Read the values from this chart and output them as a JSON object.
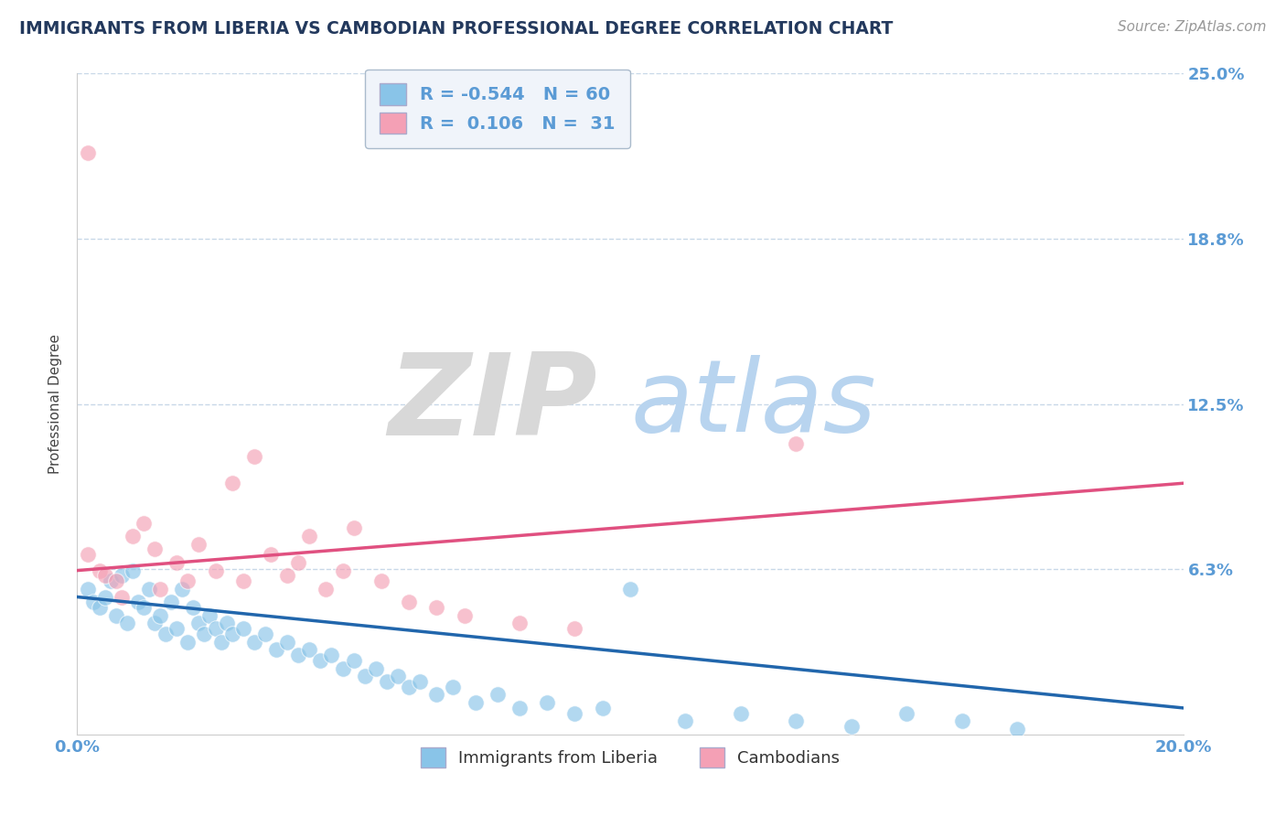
{
  "title": "IMMIGRANTS FROM LIBERIA VS CAMBODIAN PROFESSIONAL DEGREE CORRELATION CHART",
  "source_text": "Source: ZipAtlas.com",
  "ylabel": "Professional Degree",
  "legend_labels": [
    "Immigrants from Liberia",
    "Cambodians"
  ],
  "legend_R": [
    -0.544,
    0.106
  ],
  "legend_N": [
    60,
    31
  ],
  "blue_color": "#89c4e8",
  "pink_color": "#f4a0b5",
  "blue_line_color": "#2166ac",
  "pink_line_color": "#e05080",
  "axis_tick_color": "#5b9bd5",
  "title_color": "#23395d",
  "source_color": "#999999",
  "ylabel_color": "#444444",
  "xlim": [
    0.0,
    0.2
  ],
  "ylim": [
    0.0,
    0.25
  ],
  "ytick_positions": [
    0.0,
    0.0625,
    0.125,
    0.1875,
    0.25
  ],
  "ytick_labels": [
    "",
    "6.3%",
    "12.5%",
    "18.8%",
    "25.0%"
  ],
  "xtick_positions": [
    0.0,
    0.05,
    0.1,
    0.15,
    0.2
  ],
  "xtick_labels": [
    "0.0%",
    "",
    "",
    "",
    "20.0%"
  ],
  "blue_scatter_x": [
    0.002,
    0.003,
    0.004,
    0.005,
    0.006,
    0.007,
    0.008,
    0.009,
    0.01,
    0.011,
    0.012,
    0.013,
    0.014,
    0.015,
    0.016,
    0.017,
    0.018,
    0.019,
    0.02,
    0.021,
    0.022,
    0.023,
    0.024,
    0.025,
    0.026,
    0.027,
    0.028,
    0.03,
    0.032,
    0.034,
    0.036,
    0.038,
    0.04,
    0.042,
    0.044,
    0.046,
    0.048,
    0.05,
    0.052,
    0.054,
    0.056,
    0.058,
    0.06,
    0.062,
    0.065,
    0.068,
    0.072,
    0.076,
    0.08,
    0.085,
    0.09,
    0.095,
    0.1,
    0.11,
    0.12,
    0.13,
    0.14,
    0.15,
    0.16,
    0.17
  ],
  "blue_scatter_y": [
    0.055,
    0.05,
    0.048,
    0.052,
    0.058,
    0.045,
    0.06,
    0.042,
    0.062,
    0.05,
    0.048,
    0.055,
    0.042,
    0.045,
    0.038,
    0.05,
    0.04,
    0.055,
    0.035,
    0.048,
    0.042,
    0.038,
    0.045,
    0.04,
    0.035,
    0.042,
    0.038,
    0.04,
    0.035,
    0.038,
    0.032,
    0.035,
    0.03,
    0.032,
    0.028,
    0.03,
    0.025,
    0.028,
    0.022,
    0.025,
    0.02,
    0.022,
    0.018,
    0.02,
    0.015,
    0.018,
    0.012,
    0.015,
    0.01,
    0.012,
    0.008,
    0.01,
    0.055,
    0.005,
    0.008,
    0.005,
    0.003,
    0.008,
    0.005,
    0.002
  ],
  "pink_scatter_x": [
    0.002,
    0.004,
    0.005,
    0.007,
    0.008,
    0.01,
    0.012,
    0.014,
    0.015,
    0.018,
    0.02,
    0.022,
    0.025,
    0.028,
    0.03,
    0.032,
    0.035,
    0.038,
    0.04,
    0.042,
    0.045,
    0.048,
    0.05,
    0.055,
    0.06,
    0.065,
    0.07,
    0.08,
    0.09,
    0.13,
    0.002
  ],
  "pink_scatter_y": [
    0.068,
    0.062,
    0.06,
    0.058,
    0.052,
    0.075,
    0.08,
    0.07,
    0.055,
    0.065,
    0.058,
    0.072,
    0.062,
    0.095,
    0.058,
    0.105,
    0.068,
    0.06,
    0.065,
    0.075,
    0.055,
    0.062,
    0.078,
    0.058,
    0.05,
    0.048,
    0.045,
    0.042,
    0.04,
    0.11,
    0.22
  ],
  "blue_line_x": [
    0.0,
    0.2
  ],
  "blue_line_y": [
    0.052,
    0.01
  ],
  "pink_line_x": [
    0.0,
    0.2
  ],
  "pink_line_y": [
    0.062,
    0.095
  ],
  "watermark_ZIP_color": "#d8d8d8",
  "watermark_atlas_color": "#b8d4ef",
  "background_color": "#ffffff",
  "grid_color": "#c8d8e8",
  "spine_color": "#cccccc",
  "legend_box_color": "#f0f4fa",
  "legend_edge_color": "#aabbcc"
}
